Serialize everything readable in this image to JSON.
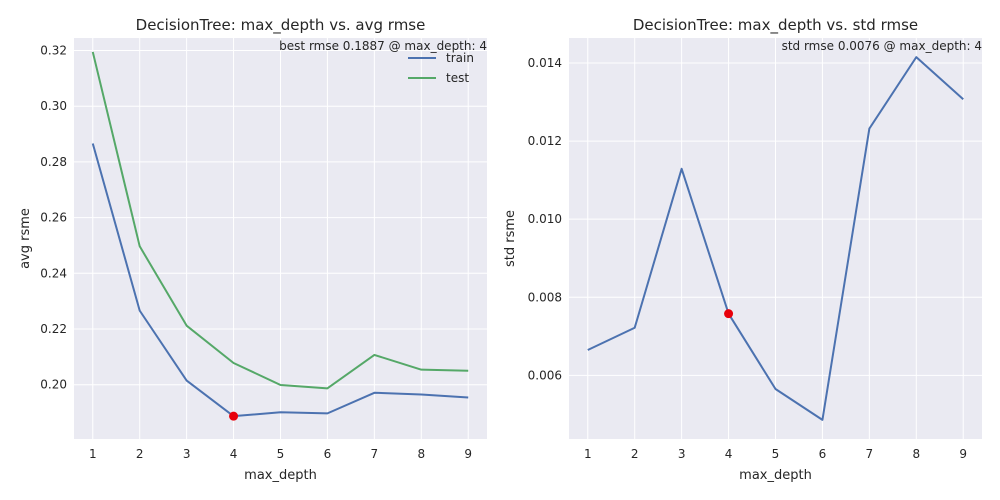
{
  "chart_data": [
    {
      "type": "line",
      "title": "DecisionTree: max_depth vs. avg rmse",
      "xlabel": "max_depth",
      "ylabel": "avg rsme",
      "annotation": "best rmse 0.1887 @ max_depth: 4",
      "x": [
        1,
        2,
        3,
        4,
        5,
        6,
        7,
        8,
        9
      ],
      "xlim": [
        0.6,
        9.4
      ],
      "ylim": [
        0.1805,
        0.3245
      ],
      "yticks": [
        0.2,
        0.22,
        0.24,
        0.26,
        0.28,
        0.3,
        0.32
      ],
      "ytick_labels": [
        "0.20",
        "0.22",
        "0.24",
        "0.26",
        "0.28",
        "0.30",
        "0.32"
      ],
      "grid": true,
      "legend_position": "top-right",
      "series": [
        {
          "name": "train",
          "color": "#4c72b0",
          "values": [
            0.2866,
            0.2266,
            0.2015,
            0.1887,
            0.1901,
            0.1897,
            0.1971,
            0.1965,
            0.1954
          ]
        },
        {
          "name": "test",
          "color": "#55a868",
          "values": [
            0.3195,
            0.2497,
            0.2212,
            0.2078,
            0.1999,
            0.1987,
            0.2107,
            0.2054,
            0.205
          ]
        }
      ],
      "highlight": {
        "x": 4,
        "y": 0.1887,
        "color": "#e8000b"
      }
    },
    {
      "type": "line",
      "title": "DecisionTree: max_depth vs. std rmse",
      "xlabel": "max_depth",
      "ylabel": "std rsme",
      "annotation": "std rmse 0.0076 @ max_depth: 4",
      "x": [
        1,
        2,
        3,
        4,
        5,
        6,
        7,
        8,
        9
      ],
      "xlim": [
        0.6,
        9.4
      ],
      "ylim": [
        0.00437,
        0.01464
      ],
      "yticks": [
        0.006,
        0.008,
        0.01,
        0.012,
        0.014
      ],
      "ytick_labels": [
        "0.006",
        "0.008",
        "0.010",
        "0.012",
        "0.014"
      ],
      "grid": true,
      "series": [
        {
          "color": "#4c72b0",
          "values": [
            0.00665,
            0.00722,
            0.01129,
            0.00758,
            0.00565,
            0.00486,
            0.01232,
            0.01415,
            0.01307
          ]
        }
      ],
      "highlight": {
        "x": 4,
        "y": 0.00758,
        "color": "#e8000b"
      }
    }
  ],
  "colors": {
    "plot_bg": "#eaeaf2",
    "grid": "#ffffff",
    "text": "#262626"
  }
}
